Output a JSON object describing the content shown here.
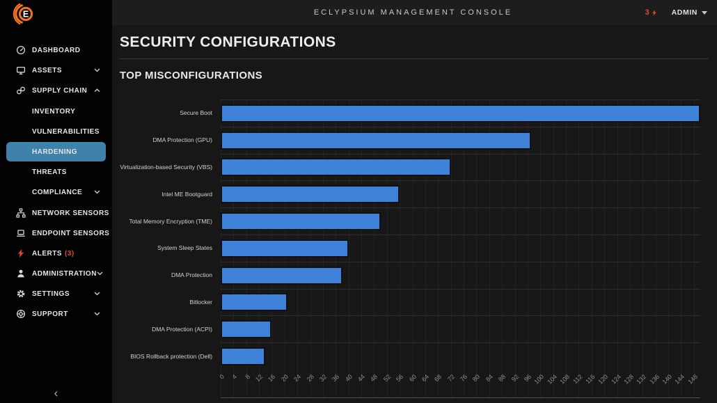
{
  "topbar": {
    "title": "ECLYPSIUM MANAGEMENT CONSOLE",
    "alert_count": "3",
    "user_menu": "ADMIN"
  },
  "sidebar": {
    "collapse_icon": "‹",
    "items": [
      {
        "label": "DASHBOARD",
        "icon": "dashboard"
      },
      {
        "label": "ASSETS",
        "icon": "assets",
        "chevron": "down"
      },
      {
        "label": "SUPPLY CHAIN",
        "icon": "supply-chain",
        "chevron": "up"
      },
      {
        "label": "INVENTORY",
        "sub": true
      },
      {
        "label": "VULNERABILITIES",
        "sub": true
      },
      {
        "label": "HARDENING",
        "sub": true,
        "selected": true
      },
      {
        "label": "THREATS",
        "sub": true
      },
      {
        "label": "COMPLIANCE",
        "sub": true,
        "chevron": "down"
      },
      {
        "label": "NETWORK SENSORS",
        "icon": "network-sensors"
      },
      {
        "label": "ENDPOINT SENSORS",
        "icon": "endpoint-sensors"
      },
      {
        "label": "ALERTS",
        "count": "(3)",
        "icon": "alerts"
      },
      {
        "label": "ADMINISTRATION",
        "icon": "administration",
        "chevron": "down"
      },
      {
        "label": "SETTINGS",
        "icon": "settings",
        "chevron": "down"
      },
      {
        "label": "SUPPORT",
        "icon": "support",
        "chevron": "down"
      }
    ]
  },
  "page": {
    "title": "SECURITY CONFIGURATIONS",
    "section_title": "TOP MISCONFIGURATIONS"
  },
  "chart_data": {
    "type": "bar",
    "orientation": "horizontal",
    "title": "TOP MISCONFIGURATIONS",
    "categories": [
      "Secure Boot",
      "DMA Protection (GPU)",
      "Virtualization-based Security (VBS)",
      "Intel ME Bootguard",
      "Total Memory Encryption (TME)",
      "System Sleep States",
      "DMA Protection",
      "Bitlocker",
      "DMA Protection (ACPI)",
      "BIOS Rollback protection (Dell)"
    ],
    "values": [
      150,
      97,
      72,
      56,
      50,
      40,
      38,
      21,
      16,
      14
    ],
    "xlim": [
      0,
      150
    ],
    "x_ticks": [
      0,
      4,
      8,
      12,
      16,
      20,
      24,
      28,
      32,
      36,
      40,
      44,
      48,
      52,
      56,
      60,
      64,
      68,
      72,
      76,
      80,
      84,
      88,
      92,
      96,
      100,
      104,
      108,
      112,
      116,
      120,
      124,
      128,
      132,
      136,
      140,
      144,
      148
    ],
    "bar_color": "#3d82d8",
    "grid": true,
    "legend": false
  },
  "colors": {
    "accent_blue": "#3d82d8",
    "selected_nav": "#3e81ab",
    "alert_red": "#e8432f",
    "brand_orange": "#f4731c"
  }
}
